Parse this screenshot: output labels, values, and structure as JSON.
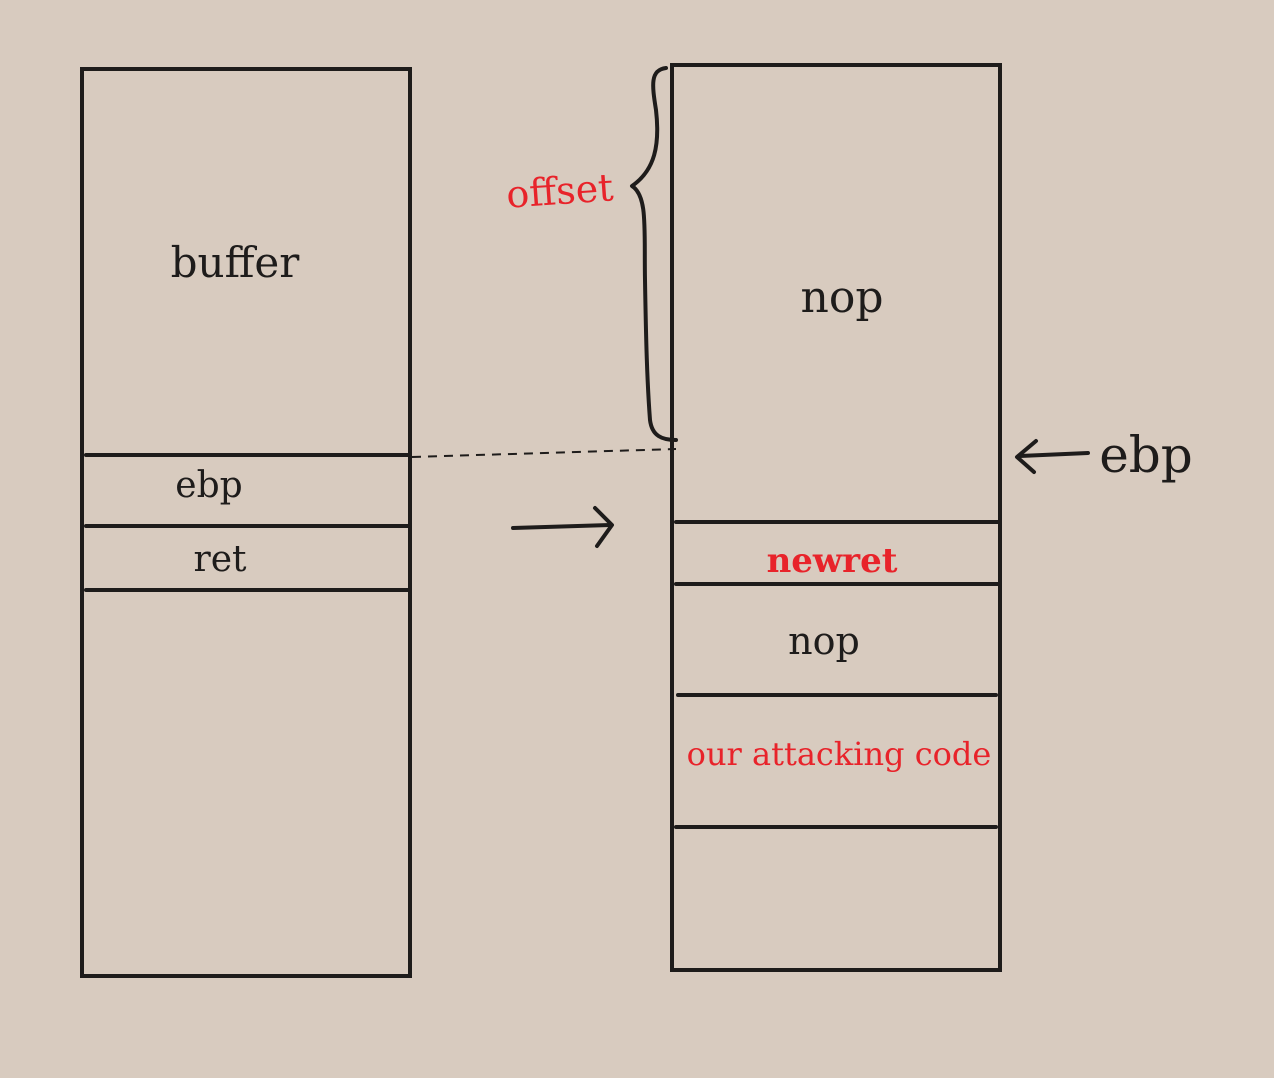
{
  "colors": {
    "background": "#d8cbbf",
    "ink": "#1e1c1b",
    "highlight": "#e8232a"
  },
  "left_stack": {
    "buffer_label": "buffer",
    "ebp_label": "ebp",
    "ret_label": "ret"
  },
  "right_stack": {
    "nop_top_label": "nop",
    "newret_label": "newret",
    "nop_bottom_label": "nop",
    "attack_code_label": "our attacking code"
  },
  "annotations": {
    "offset_label": "offset",
    "ebp_pointer_label": "ebp"
  }
}
